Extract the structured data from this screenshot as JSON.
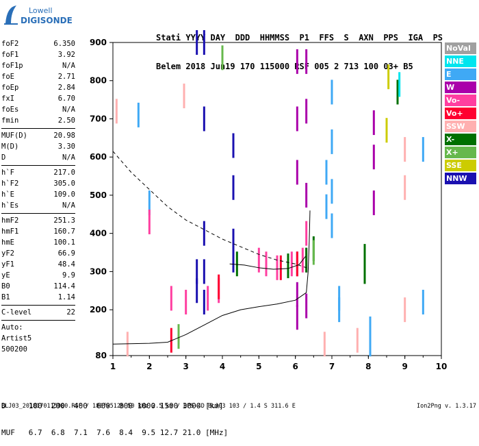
{
  "logo": {
    "line1": "Lowell",
    "line2": "DIGISONDE"
  },
  "header": {
    "labels": [
      "Stati",
      "YYYY",
      "DAY",
      "DDD",
      "HHMMSS",
      "P1",
      "FFS",
      "S",
      "AXN",
      "PPS",
      "IGA",
      "PS"
    ],
    "values": [
      "Belem",
      "2018",
      "Jun19",
      "170",
      "115000",
      "RSF",
      "005",
      "2",
      "713",
      "100",
      "03+",
      "B5"
    ]
  },
  "params": {
    "group1": [
      {
        "name": "foF2",
        "value": "6.350"
      },
      {
        "name": "foF1",
        "value": "3.92"
      },
      {
        "name": "foF1p",
        "value": "N/A"
      },
      {
        "name": "foE",
        "value": "2.71"
      },
      {
        "name": "foEp",
        "value": "2.84"
      },
      {
        "name": "fxI",
        "value": "6.70"
      },
      {
        "name": "foEs",
        "value": "N/A"
      },
      {
        "name": "fmin",
        "value": "2.50"
      }
    ],
    "group2": [
      {
        "name": "MUF(D)",
        "value": "20.98"
      },
      {
        "name": "M(D)",
        "value": "3.30"
      },
      {
        "name": "D",
        "value": "N/A"
      }
    ],
    "group3": [
      {
        "name": "h`F",
        "value": "217.0"
      },
      {
        "name": "h`F2",
        "value": "305.0"
      },
      {
        "name": "h`E",
        "value": "109.0"
      },
      {
        "name": "h`Es",
        "value": "N/A"
      }
    ],
    "group4": [
      {
        "name": "hmF2",
        "value": "251.3"
      },
      {
        "name": "hmF1",
        "value": "160.7"
      },
      {
        "name": "hmE",
        "value": "100.1"
      },
      {
        "name": "yF2",
        "value": "66.9"
      },
      {
        "name": "yF1",
        "value": "48.4"
      },
      {
        "name": "yE",
        "value": "9.9"
      },
      {
        "name": "B0",
        "value": "114.4"
      },
      {
        "name": "B1",
        "value": "1.14"
      }
    ],
    "group5": [
      {
        "name": "C-level",
        "value": "22"
      }
    ],
    "group6": [
      "Auto:",
      "Artist5",
      "500200"
    ]
  },
  "legend": [
    {
      "label": "NoVal",
      "color": "#a0a0a0"
    },
    {
      "label": "NNE",
      "color": "#00e5ee"
    },
    {
      "label": "E",
      "color": "#3fa9f5"
    },
    {
      "label": "W",
      "color": "#aa00aa"
    },
    {
      "label": "Vo-",
      "color": "#ff3fa0"
    },
    {
      "label": "Vo+",
      "color": "#ff0030"
    },
    {
      "label": "SSW",
      "color": "#ffb0b0"
    },
    {
      "label": "X-",
      "color": "#007000"
    },
    {
      "label": "X+",
      "color": "#66b84c"
    },
    {
      "label": "SSE",
      "color": "#cccc00"
    },
    {
      "label": "NNW",
      "color": "#1a10b0"
    }
  ],
  "muf_table": {
    "d_label": "D",
    "d_values": [
      "100",
      "200",
      "400",
      "600",
      "800",
      "1000",
      "1500",
      "3000"
    ],
    "d_unit": "[km]",
    "muf_label": "MUF",
    "muf_values": [
      "6.7",
      "6.8",
      "7.1",
      "7.6",
      "8.4",
      "9.5",
      "12.7",
      "21.0"
    ],
    "muf_unit": "[MHz]"
  },
  "footer": "BLJ03_2018170115000.RSF / 180fx512h 50 kHz 2.5 km / DPS-4D BLJ03 103 / 1.4 S 311.6 E",
  "version": "Ion2Png v. 1.3.17",
  "chart_data": {
    "type": "scatter",
    "x_ticks": [
      "1",
      "2",
      "3",
      "4",
      "5",
      "6",
      "7",
      "8",
      "9",
      "10"
    ],
    "y_ticks": [
      "80",
      "200",
      "300",
      "400",
      "500",
      "600",
      "700",
      "800",
      "900"
    ],
    "xlim": [
      1,
      10
    ],
    "ylim": [
      80,
      900
    ],
    "grid": false,
    "series": [
      {
        "color": "#1a10b0",
        "points": [
          [
            3.3,
            900
          ],
          [
            3.3,
            300
          ],
          [
            3.3,
            250
          ],
          [
            3.5,
            900
          ],
          [
            3.5,
            700
          ],
          [
            3.5,
            400
          ],
          [
            3.5,
            300
          ],
          [
            3.5,
            220
          ],
          [
            4.3,
            630
          ],
          [
            4.3,
            520
          ],
          [
            4.3,
            380
          ],
          [
            4.3,
            330
          ]
        ]
      },
      {
        "color": "#aa00aa",
        "points": [
          [
            6.05,
            850
          ],
          [
            6.05,
            700
          ],
          [
            6.05,
            560
          ],
          [
            6.05,
            320
          ],
          [
            6.05,
            240
          ],
          [
            6.05,
            180
          ],
          [
            6.3,
            850
          ],
          [
            6.3,
            720
          ],
          [
            6.3,
            500
          ],
          [
            6.3,
            330
          ],
          [
            6.3,
            210
          ],
          [
            8.15,
            690
          ],
          [
            8.15,
            600
          ],
          [
            8.15,
            480
          ]
        ]
      },
      {
        "color": "#3fa9f5",
        "points": [
          [
            7.0,
            770
          ],
          [
            7.0,
            640
          ],
          [
            7.0,
            510
          ],
          [
            7.0,
            420
          ],
          [
            6.85,
            560
          ],
          [
            6.85,
            470
          ],
          [
            7.2,
            230
          ],
          [
            7.2,
            200
          ],
          [
            8.05,
            150
          ],
          [
            8.05,
            110
          ],
          [
            1.7,
            710
          ],
          [
            2.0,
            480
          ],
          [
            9.5,
            620
          ],
          [
            9.5,
            220
          ]
        ]
      },
      {
        "color": "#ff3fa0",
        "points": [
          [
            2.6,
            230
          ],
          [
            3.0,
            220
          ],
          [
            3.6,
            230
          ],
          [
            3.9,
            250
          ],
          [
            5.0,
            330
          ],
          [
            5.2,
            320
          ],
          [
            5.5,
            310
          ],
          [
            5.9,
            320
          ],
          [
            6.2,
            330
          ],
          [
            6.3,
            400
          ],
          [
            2.0,
            430
          ]
        ]
      },
      {
        "color": "#ff0030",
        "points": [
          [
            2.6,
            120
          ],
          [
            3.9,
            260
          ],
          [
            5.6,
            310
          ],
          [
            6.05,
            320
          ]
        ]
      },
      {
        "color": "#ffb0b0",
        "points": [
          [
            1.1,
            720
          ],
          [
            1.4,
            110
          ],
          [
            2.95,
            760
          ],
          [
            7.7,
            120
          ],
          [
            9.0,
            620
          ],
          [
            9.0,
            520
          ],
          [
            9.0,
            200
          ],
          [
            6.8,
            110
          ]
        ]
      },
      {
        "color": "#007000",
        "points": [
          [
            4.4,
            320
          ],
          [
            5.8,
            315
          ],
          [
            6.3,
            330
          ],
          [
            6.5,
            360
          ],
          [
            7.9,
            340
          ],
          [
            7.9,
            300
          ],
          [
            8.8,
            770
          ]
        ]
      },
      {
        "color": "#66b84c",
        "points": [
          [
            2.8,
            130
          ],
          [
            4.0,
            860
          ],
          [
            6.5,
            350
          ]
        ]
      },
      {
        "color": "#cccc00",
        "points": [
          [
            8.5,
            670
          ],
          [
            8.55,
            810
          ]
        ]
      },
      {
        "color": "#00e5ee",
        "points": [
          [
            8.85,
            790
          ]
        ]
      }
    ],
    "trace_points": [
      [
        1.0,
        110
      ],
      [
        2.0,
        112
      ],
      [
        2.5,
        115
      ],
      [
        3.0,
        135
      ],
      [
        3.5,
        160
      ],
      [
        4.0,
        185
      ],
      [
        4.5,
        200
      ],
      [
        5.0,
        208
      ],
      [
        5.5,
        215
      ],
      [
        6.0,
        225
      ],
      [
        6.3,
        245
      ],
      [
        6.35,
        300
      ],
      [
        6.38,
        380
      ],
      [
        6.4,
        460
      ]
    ],
    "trace2_points": [
      [
        4.2,
        320
      ],
      [
        4.6,
        317
      ],
      [
        5.0,
        310
      ],
      [
        5.4,
        306
      ],
      [
        5.8,
        308
      ],
      [
        6.1,
        318
      ],
      [
        6.28,
        340
      ]
    ],
    "model_points": [
      [
        1.0,
        615
      ],
      [
        1.5,
        560
      ],
      [
        2.0,
        515
      ],
      [
        2.5,
        470
      ],
      [
        3.0,
        435
      ],
      [
        3.5,
        410
      ],
      [
        4.0,
        385
      ],
      [
        4.5,
        365
      ],
      [
        5.0,
        345
      ],
      [
        5.5,
        330
      ],
      [
        6.0,
        320
      ],
      [
        6.3,
        310
      ]
    ]
  }
}
